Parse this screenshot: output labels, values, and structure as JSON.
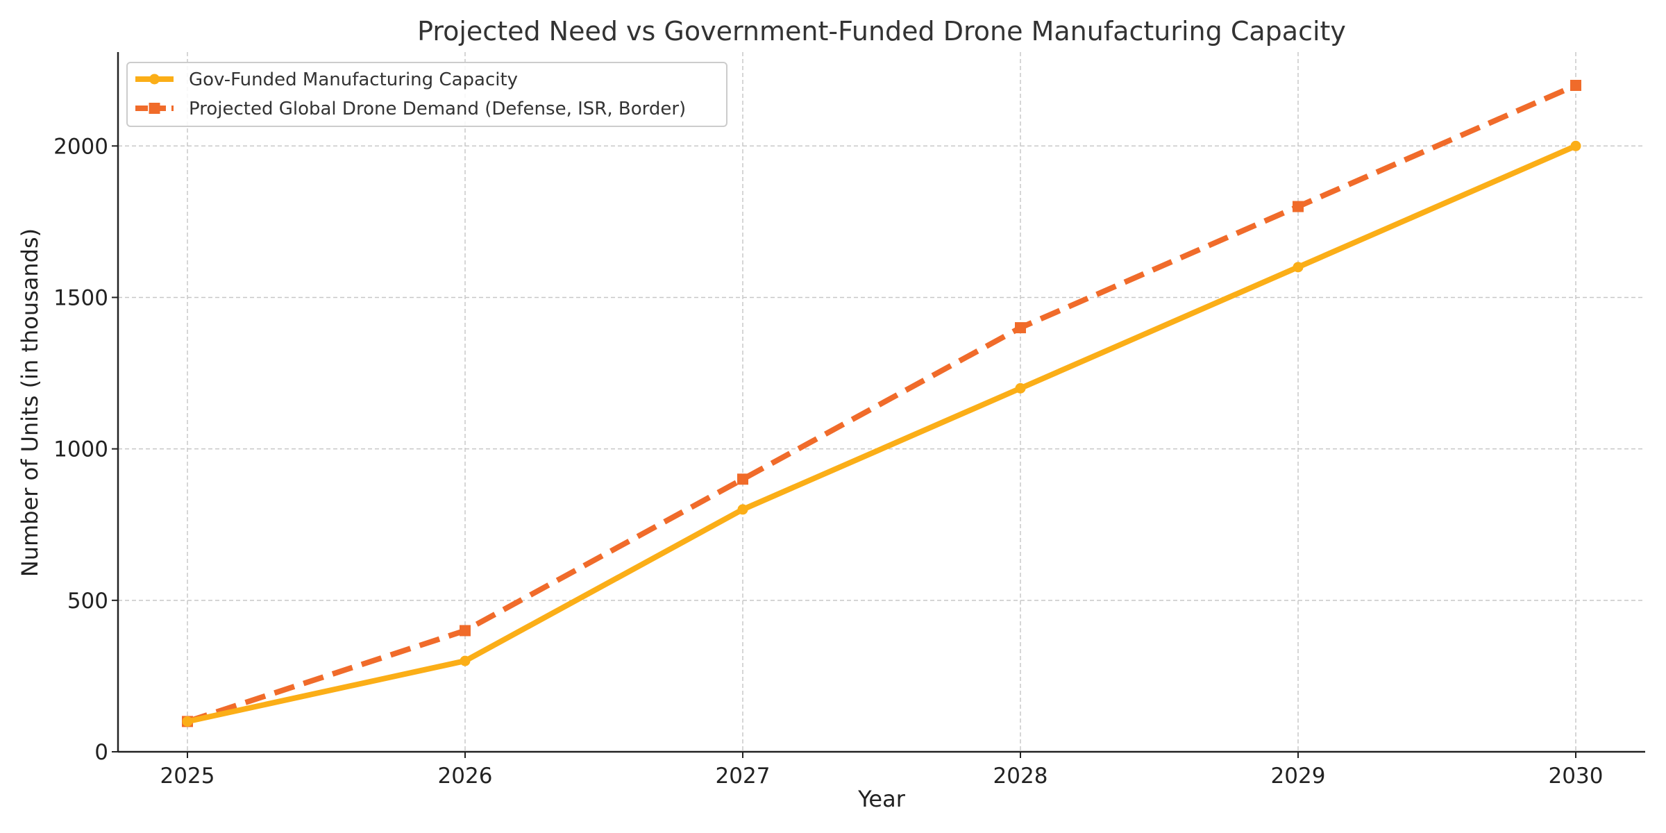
{
  "chart_data": {
    "type": "line",
    "title": "Projected Need vs Government-Funded Drone Manufacturing Capacity",
    "xlabel": "Year",
    "ylabel": "Number of Units (in thousands)",
    "x": [
      "2025",
      "2026",
      "2027",
      "2028",
      "2029",
      "2030"
    ],
    "xlim": [
      2024.75,
      2030.25
    ],
    "ylim": [
      0,
      2310
    ],
    "yticks": [
      0,
      500,
      1000,
      1500,
      2000
    ],
    "grid": true,
    "legend_position": "top-left",
    "series": [
      {
        "name": "Gov-Funded Manufacturing Capacity",
        "values": [
          100,
          300,
          800,
          1200,
          1600,
          2000
        ],
        "color": "#FBAE17",
        "line_style": "solid",
        "marker": "circle"
      },
      {
        "name": "Projected Global Drone Demand (Defense, ISR, Border)",
        "values": [
          100,
          400,
          900,
          1400,
          1800,
          2200
        ],
        "color": "#F06B2A",
        "line_style": "dashed",
        "marker": "square"
      }
    ]
  }
}
